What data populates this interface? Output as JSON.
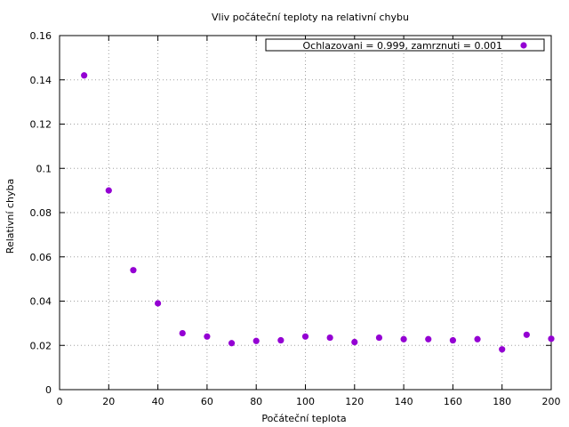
{
  "chart_data": {
    "type": "scatter",
    "title": "Vliv počáteční teploty na relativní chybu",
    "xlabel": "Počáteční teplota",
    "ylabel": "Relativní chyba",
    "xlim": [
      0,
      200
    ],
    "ylim": [
      0,
      0.16
    ],
    "xticks": [
      "0",
      "20",
      "40",
      "60",
      "80",
      "100",
      "120",
      "140",
      "160",
      "180",
      "200"
    ],
    "yticks": [
      "0",
      "0.02",
      "0.04",
      "0.06",
      "0.08",
      "0.1",
      "0.12",
      "0.14",
      "0.16"
    ],
    "grid": true,
    "legend_position": "top-right",
    "series": [
      {
        "name": "Ochlazovani = 0.999, zamrznuti = 0.001",
        "color": "#9400d3",
        "x": [
          10,
          20,
          30,
          40,
          50,
          60,
          70,
          80,
          90,
          100,
          110,
          120,
          130,
          140,
          150,
          160,
          170,
          180,
          190,
          200
        ],
        "y": [
          0.142,
          0.09,
          0.054,
          0.039,
          0.0255,
          0.024,
          0.021,
          0.022,
          0.0223,
          0.024,
          0.0235,
          0.0215,
          0.0235,
          0.0228,
          0.0228,
          0.0223,
          0.0228,
          0.0182,
          0.0248,
          0.023
        ]
      }
    ]
  }
}
